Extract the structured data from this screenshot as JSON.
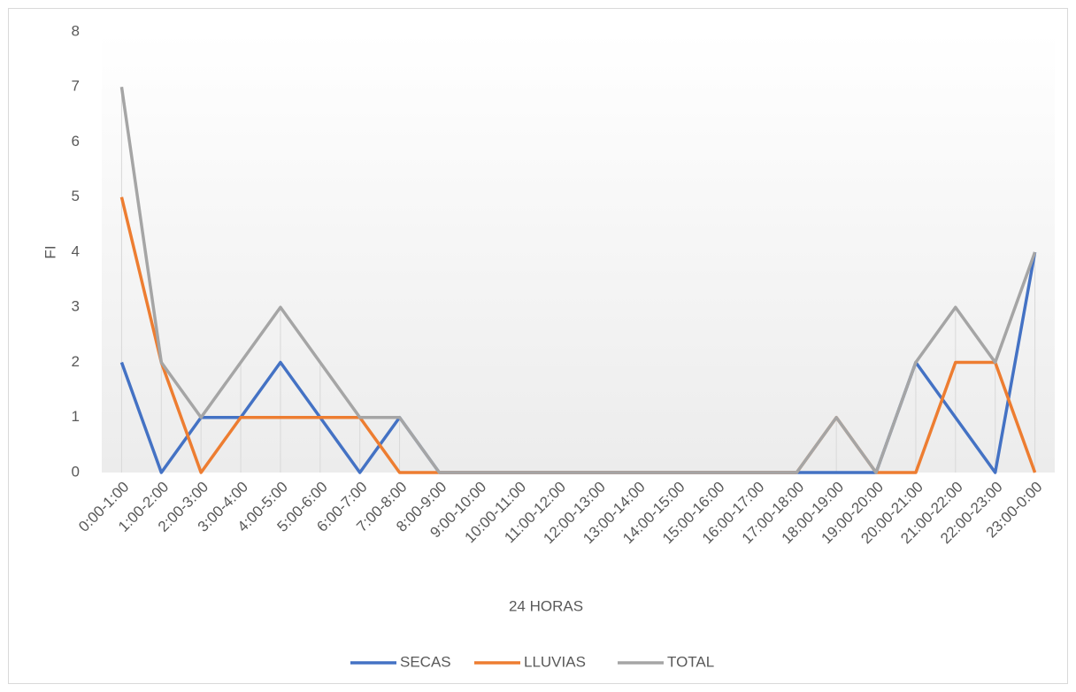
{
  "chart_data": {
    "type": "line",
    "x_label": "24 HORAS",
    "y_label": "FI",
    "categories": [
      "0:00-1:00",
      "1:00-2:00",
      "2:00-3:00",
      "3:00-4:00",
      "4:00-5:00",
      "5:00-6:00",
      "6:00-7:00",
      "7:00-8:00",
      "8:00-9:00",
      "9:00-10:00",
      "10:00-11:00",
      "11:00-12:00",
      "12:00-13:00",
      "13:00-14:00",
      "14:00-15:00",
      "15:00-16:00",
      "16:00-17:00",
      "17:00-18:00",
      "18:00-19:00",
      "19:00-20:00",
      "20:00-21:00",
      "21:00-22:00",
      "22:00-23:00",
      "23:00-0:00"
    ],
    "series": [
      {
        "name": "SECAS",
        "color": "#4472c4",
        "values": [
          2,
          0,
          1,
          1,
          2,
          1,
          0,
          1,
          0,
          0,
          0,
          0,
          0,
          0,
          0,
          0,
          0,
          0,
          0,
          0,
          2,
          1,
          0,
          4
        ]
      },
      {
        "name": "LLUVIAS",
        "color": "#ed7d31",
        "values": [
          5,
          2,
          0,
          1,
          1,
          1,
          1,
          0,
          0,
          0,
          0,
          0,
          0,
          0,
          0,
          0,
          0,
          0,
          1,
          0,
          0,
          2,
          2,
          0
        ]
      },
      {
        "name": "TOTAL",
        "color": "#a5a5a5",
        "values": [
          7,
          2,
          1,
          2,
          3,
          2,
          1,
          1,
          0,
          0,
          0,
          0,
          0,
          0,
          0,
          0,
          0,
          0,
          1,
          0,
          2,
          3,
          2,
          4
        ]
      }
    ],
    "ylim": [
      0,
      8
    ],
    "yticks": [
      0,
      1,
      2,
      3,
      4,
      5,
      6,
      7,
      8
    ],
    "drop_lines": true,
    "legend": "bottom"
  }
}
